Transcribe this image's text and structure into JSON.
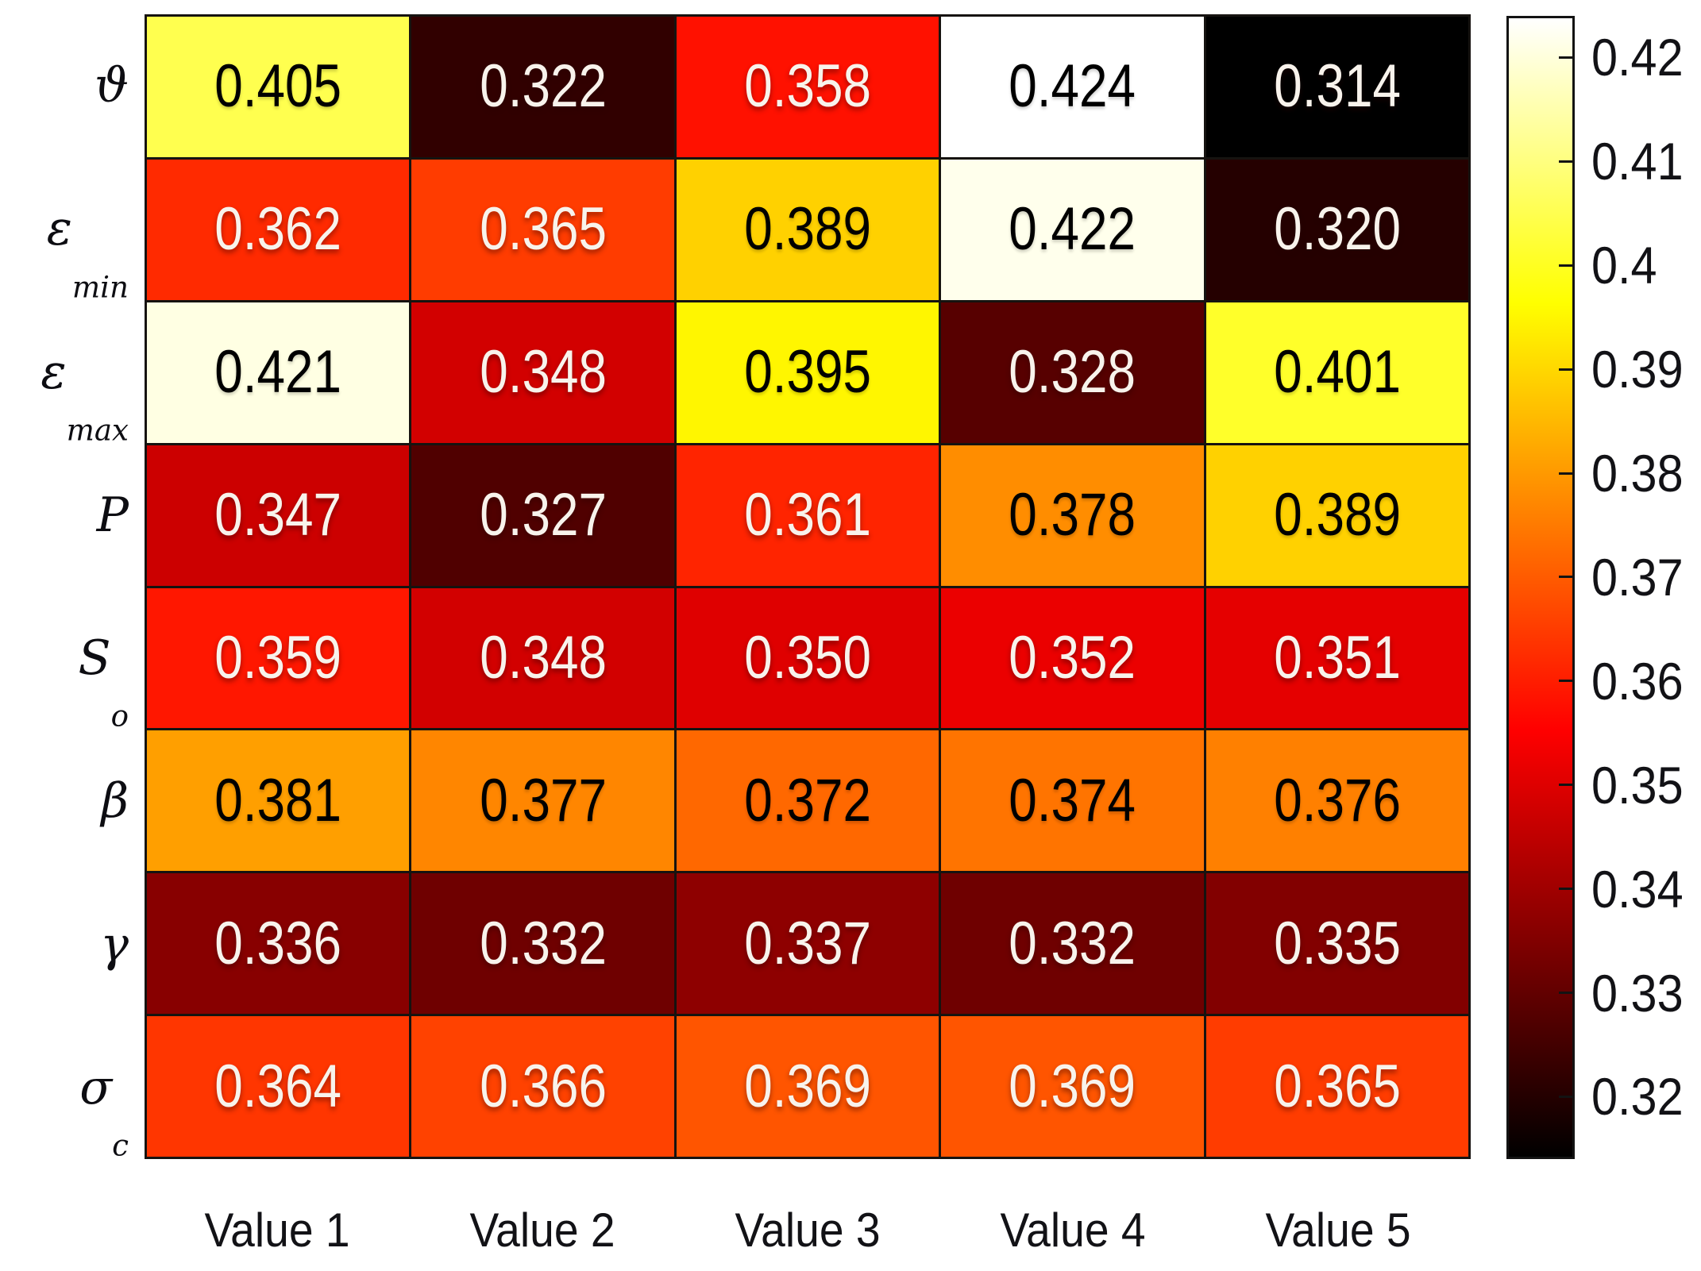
{
  "figure": {
    "background": "#ffffff"
  },
  "chart_data": {
    "type": "heatmap",
    "title": "",
    "xlabel": "",
    "ylabel": "",
    "row_labels": [
      {
        "base": "ϑ",
        "sub": ""
      },
      {
        "base": "ε",
        "sub": "min"
      },
      {
        "base": "ε",
        "sub": "max"
      },
      {
        "base": "P",
        "sub": ""
      },
      {
        "base": "S",
        "sub": "o"
      },
      {
        "base": "β",
        "sub": ""
      },
      {
        "base": "γ",
        "sub": ""
      },
      {
        "base": "σ",
        "sub": "c"
      }
    ],
    "col_labels": [
      "Value 1",
      "Value 2",
      "Value 3",
      "Value 4",
      "Value 5"
    ],
    "values": [
      [
        0.405,
        0.322,
        0.358,
        0.424,
        0.314
      ],
      [
        0.362,
        0.365,
        0.389,
        0.422,
        0.32
      ],
      [
        0.421,
        0.348,
        0.395,
        0.328,
        0.401
      ],
      [
        0.347,
        0.327,
        0.361,
        0.378,
        0.389
      ],
      [
        0.359,
        0.348,
        0.35,
        0.352,
        0.351
      ],
      [
        0.381,
        0.377,
        0.372,
        0.374,
        0.376
      ],
      [
        0.336,
        0.332,
        0.337,
        0.332,
        0.335
      ],
      [
        0.364,
        0.366,
        0.369,
        0.369,
        0.365
      ]
    ],
    "value_decimals": 3,
    "grid_on": true,
    "legend_position": "right-colorbar",
    "colormap": {
      "name": "hot",
      "vmin": 0.314,
      "vmax": 0.424,
      "stops": [
        {
          "t": 0,
          "color": "#000000"
        },
        {
          "t": 0.375,
          "color": "#ff0000"
        },
        {
          "t": 0.75,
          "color": "#ffff00"
        },
        {
          "t": 1,
          "color": "#ffffff"
        }
      ]
    },
    "colorbar": {
      "tick_values": [
        0.42,
        0.41,
        0.4,
        0.39,
        0.38,
        0.37,
        0.36,
        0.35,
        0.34,
        0.33,
        0.32
      ],
      "tick_labels": [
        "0.42",
        "0.41",
        "0.4",
        "0.39",
        "0.38",
        "0.37",
        "0.36",
        "0.35",
        "0.34",
        "0.33",
        "0.32"
      ]
    },
    "styles": {
      "grid_line_color": "#161310",
      "cell_text_light": "#f8f3ec",
      "cell_text_dark": "#000000",
      "axis_text_color": "#121216",
      "luminance_threshold": 0.51
    }
  }
}
